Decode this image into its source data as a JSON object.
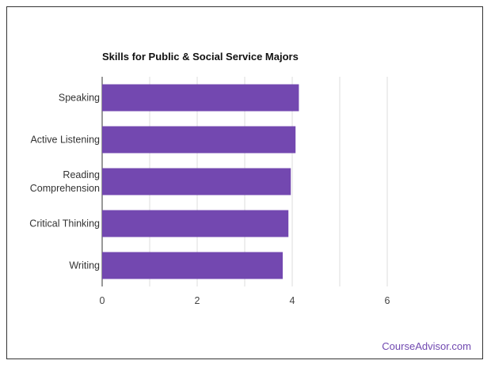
{
  "chart_data": {
    "type": "bar",
    "orientation": "horizontal",
    "title": "Skills for Public & Social Service Majors",
    "categories": [
      "Speaking",
      "Active Listening",
      "Reading Comprehension",
      "Critical Thinking",
      "Writing"
    ],
    "values": [
      4.14,
      4.07,
      3.97,
      3.92,
      3.8
    ],
    "xlim": [
      0,
      6
    ],
    "xticks": [
      0,
      2,
      4,
      6
    ],
    "grid": true,
    "bar_color": "#7348b0",
    "xlabel": "",
    "ylabel": ""
  },
  "credit": "CourseAdvisor.com"
}
